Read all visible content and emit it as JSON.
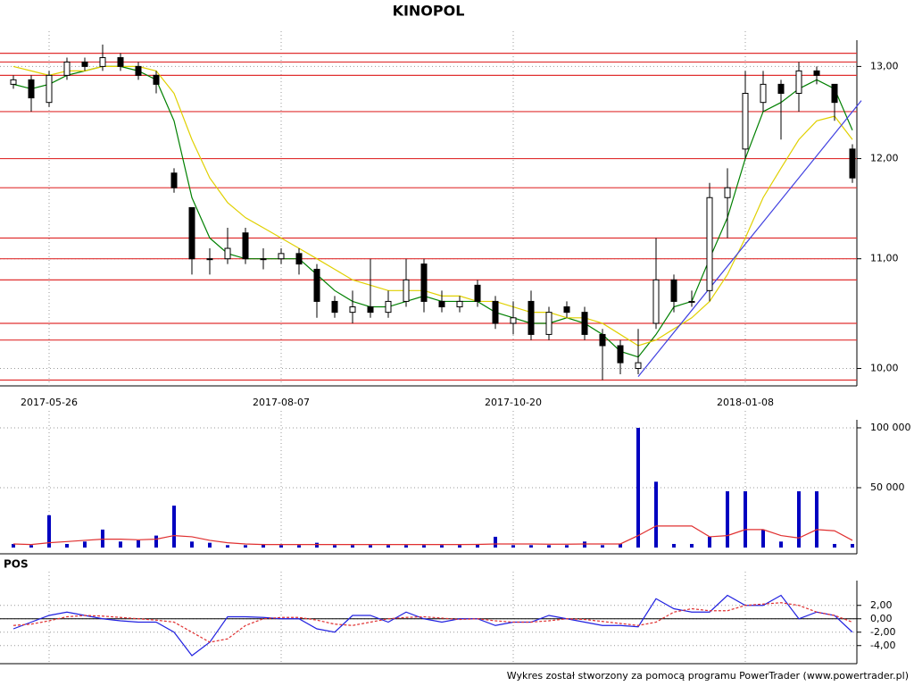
{
  "chart_data": [
    {
      "type": "candlestick",
      "title": "KINOPOL",
      "log": true,
      "grid": true,
      "categories": [
        null,
        null,
        "2017-05-26",
        null,
        null,
        null,
        null,
        null,
        null,
        null,
        null,
        null,
        null,
        null,
        null,
        "2017-08-07",
        null,
        null,
        null,
        null,
        null,
        null,
        null,
        null,
        null,
        null,
        null,
        null,
        "2017-10-20",
        null,
        null,
        null,
        null,
        null,
        null,
        null,
        null,
        null,
        null,
        null,
        null,
        "2018-01-08",
        null,
        null,
        null,
        null,
        null,
        null
      ],
      "open": [
        12.8,
        12.85,
        12.6,
        12.9,
        13.05,
        13.0,
        13.1,
        13.0,
        12.9,
        11.85,
        11.5,
        11.0,
        11.0,
        11.25,
        11.0,
        11.0,
        11.05,
        10.9,
        10.6,
        10.5,
        10.55,
        10.5,
        10.6,
        10.95,
        10.6,
        10.55,
        10.75,
        10.6,
        10.4,
        10.6,
        10.3,
        10.55,
        10.5,
        10.3,
        10.2,
        10.0,
        10.4,
        10.8,
        10.6,
        10.7,
        11.6,
        12.1,
        12.6,
        12.8,
        12.7,
        12.95,
        12.8,
        12.1
      ],
      "high": [
        12.9,
        12.9,
        12.95,
        13.1,
        13.1,
        13.25,
        13.15,
        13.05,
        12.95,
        11.9,
        11.5,
        11.1,
        11.3,
        11.3,
        11.1,
        11.1,
        11.1,
        10.95,
        10.65,
        10.7,
        11.0,
        10.7,
        11.0,
        11.0,
        10.7,
        10.65,
        10.8,
        10.65,
        10.6,
        10.7,
        10.55,
        10.6,
        10.55,
        10.35,
        10.25,
        10.35,
        11.2,
        10.85,
        10.7,
        11.75,
        11.9,
        12.95,
        12.95,
        12.85,
        13.05,
        13.0,
        12.8,
        12.15
      ],
      "low": [
        12.75,
        12.5,
        12.55,
        12.85,
        12.95,
        12.95,
        12.95,
        12.85,
        12.7,
        11.65,
        10.85,
        10.85,
        10.95,
        10.95,
        10.9,
        10.95,
        10.85,
        10.45,
        10.45,
        10.4,
        10.45,
        10.45,
        10.55,
        10.5,
        10.5,
        10.5,
        10.55,
        10.35,
        10.3,
        10.25,
        10.25,
        10.45,
        10.25,
        9.9,
        9.95,
        9.95,
        10.35,
        10.5,
        10.55,
        10.6,
        11.2,
        12.0,
        12.5,
        12.2,
        12.5,
        12.8,
        12.4,
        11.75
      ],
      "close": [
        12.85,
        12.65,
        12.9,
        13.05,
        13.0,
        13.1,
        13.0,
        12.9,
        12.8,
        11.7,
        11.0,
        11.0,
        11.1,
        11.0,
        11.0,
        11.05,
        10.95,
        10.6,
        10.5,
        10.55,
        10.5,
        10.6,
        10.8,
        10.6,
        10.55,
        10.6,
        10.6,
        10.4,
        10.45,
        10.3,
        10.5,
        10.5,
        10.3,
        10.2,
        10.05,
        10.05,
        10.8,
        10.6,
        10.6,
        11.6,
        11.7,
        12.7,
        12.8,
        12.7,
        12.95,
        12.9,
        12.6,
        11.8
      ],
      "color": "#000000",
      "lines": [
        {
          "color": "#008000",
          "values": [
            12.8,
            12.75,
            12.8,
            12.9,
            12.95,
            13.0,
            13.0,
            12.95,
            12.85,
            12.4,
            11.6,
            11.2,
            11.05,
            11.0,
            11.0,
            11.0,
            11.0,
            10.85,
            10.7,
            10.6,
            10.55,
            10.55,
            10.6,
            10.65,
            10.6,
            10.6,
            10.6,
            10.5,
            10.45,
            10.4,
            10.4,
            10.45,
            10.4,
            10.3,
            10.15,
            10.1,
            10.3,
            10.55,
            10.6,
            11.0,
            11.4,
            12.0,
            12.5,
            12.6,
            12.75,
            12.85,
            12.75,
            12.3
          ]
        },
        {
          "color": "#e0d000",
          "values": [
            13.0,
            12.95,
            12.9,
            12.95,
            12.95,
            13.0,
            13.0,
            13.0,
            12.95,
            12.7,
            12.2,
            11.8,
            11.55,
            11.4,
            11.3,
            11.2,
            11.1,
            11.0,
            10.9,
            10.8,
            10.75,
            10.7,
            10.7,
            10.7,
            10.65,
            10.65,
            10.6,
            10.6,
            10.55,
            10.5,
            10.5,
            10.45,
            10.45,
            10.4,
            10.3,
            10.2,
            10.25,
            10.35,
            10.45,
            10.6,
            10.85,
            11.2,
            11.6,
            11.9,
            12.2,
            12.4,
            12.45,
            12.2
          ]
        }
      ],
      "levels": [
        13.15,
        13.05,
        12.9,
        12.5,
        12.0,
        11.7,
        11.2,
        11.0,
        10.8,
        10.4,
        10.25,
        9.9
      ],
      "level_color": "#e03030",
      "trendline": {
        "color": "#4040e0",
        "x": [
          35,
          47.5
        ],
        "values": [
          9.93,
          12.62
        ]
      },
      "ylim": [
        9.85,
        13.3
      ],
      "yticks": [
        {
          "value": 10,
          "label": "10,00"
        },
        {
          "value": 11,
          "label": "11,00"
        },
        {
          "value": 12,
          "label": "12,00"
        },
        {
          "value": 13,
          "label": "13,00"
        }
      ]
    },
    {
      "type": "bar",
      "grid": true,
      "color": "#0000c0",
      "values": [
        3000,
        2000,
        27000,
        3000,
        5000,
        15000,
        5000,
        6000,
        10000,
        35000,
        5000,
        4000,
        2000,
        2000,
        3000,
        2000,
        2000,
        4000,
        2000,
        2000,
        2000,
        2000,
        2000,
        2000,
        2000,
        2000,
        3000,
        9000,
        2000,
        2000,
        2000,
        2000,
        5000,
        2000,
        3000,
        100000,
        55000,
        3000,
        3000,
        9000,
        47000,
        47000,
        15000,
        5000,
        47000,
        47000,
        3000,
        3000
      ],
      "average": {
        "color": "#e03030",
        "values": [
          3000,
          2500,
          4000,
          5000,
          6000,
          7000,
          7000,
          6500,
          7000,
          10000,
          9000,
          6000,
          4000,
          3000,
          2500,
          2500,
          2500,
          2500,
          2500,
          2500,
          2500,
          2500,
          2500,
          2500,
          2500,
          2500,
          2600,
          3000,
          3000,
          3000,
          2800,
          2800,
          3000,
          3000,
          3000,
          10000,
          18000,
          18000,
          18000,
          9000,
          10000,
          15000,
          15000,
          10000,
          8000,
          15000,
          14000,
          6000
        ]
      },
      "ylim": [
        0,
        106700
      ],
      "yticks": [
        {
          "value": 100000,
          "label": "100 000"
        },
        {
          "value": 50000,
          "label": "50 000"
        }
      ]
    },
    {
      "type": "line",
      "title": "POS",
      "grid": true,
      "series": [
        {
          "color": "#2020e0",
          "dashed": false,
          "values": [
            -1.5,
            -0.5,
            0.5,
            1,
            0.5,
            0,
            -0.3,
            -0.5,
            -0.5,
            -2,
            -5.5,
            -3.5,
            0.3,
            0.3,
            0.2,
            0,
            0,
            -1.5,
            -2,
            0.5,
            0.5,
            -0.5,
            1,
            0,
            -0.5,
            0,
            0,
            -1,
            -0.5,
            -0.5,
            0.5,
            0,
            -0.5,
            -1,
            -1,
            -1.2,
            3,
            1.5,
            1,
            1,
            3.5,
            2,
            2,
            3.5,
            0,
            1,
            0.5,
            -2
          ]
        },
        {
          "color": "#e03030",
          "dashed": true,
          "values": [
            -1,
            -0.8,
            -0.3,
            0.3,
            0.5,
            0.4,
            0.2,
            0,
            -0.2,
            -0.5,
            -2,
            -3.5,
            -3,
            -1,
            0,
            0.2,
            0.2,
            -0.2,
            -0.8,
            -1,
            -0.5,
            0,
            0.2,
            0.3,
            0.1,
            -0.1,
            0,
            -0.3,
            -0.5,
            -0.5,
            -0.3,
            0,
            -0.1,
            -0.4,
            -0.7,
            -1,
            -0.5,
            1,
            1.5,
            1.2,
            1.2,
            2,
            2.2,
            2.4,
            2,
            1,
            0.5,
            -0.5
          ]
        }
      ],
      "zero_line": 0,
      "ylim": [
        -6.7,
        5.7
      ],
      "yticks": [
        {
          "value": 2,
          "label": "2,00"
        },
        {
          "value": 0,
          "label": "0,00"
        },
        {
          "value": -2,
          "label": "-2,00"
        },
        {
          "value": -4,
          "label": "-4,00"
        }
      ]
    }
  ],
  "footer": "Wykres został stworzony za pomocą programu PowerTrader (www.powertrader.pl)"
}
